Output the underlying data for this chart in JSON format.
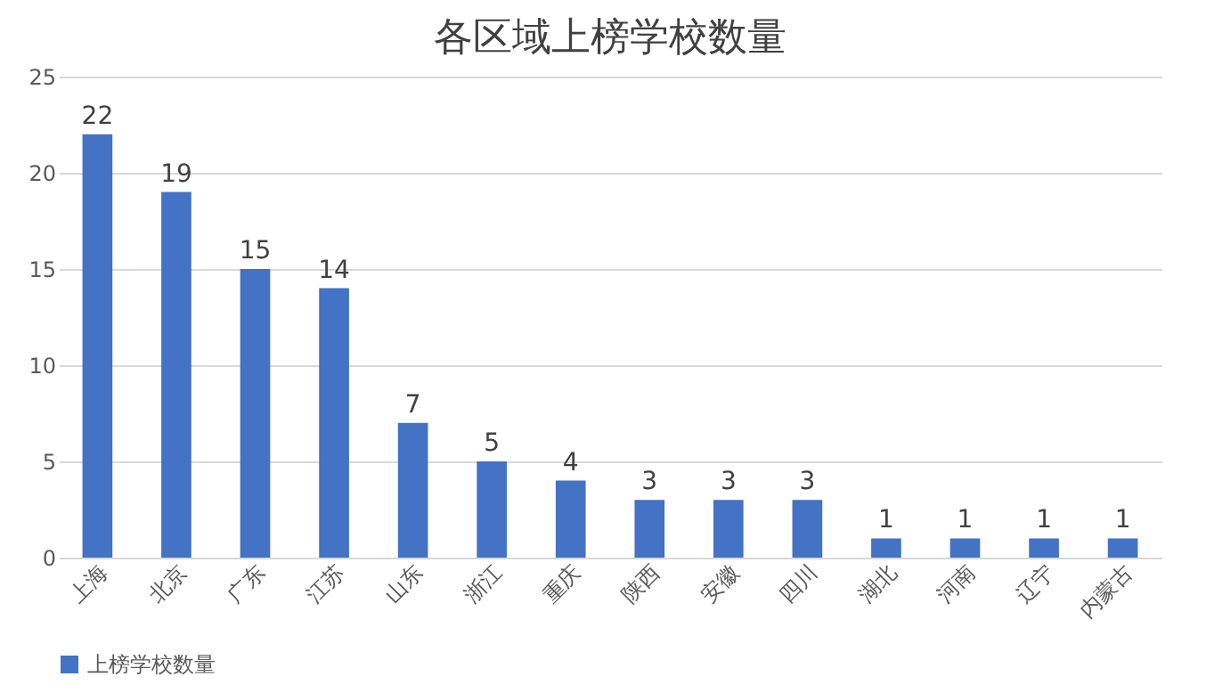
{
  "chart_data": {
    "type": "bar",
    "title": "各区域上榜学校数量",
    "categories": [
      "上海",
      "北京",
      "广东",
      "江苏",
      "山东",
      "浙江",
      "重庆",
      "陕西",
      "安徽",
      "四川",
      "湖北",
      "河南",
      "辽宁",
      "内蒙古"
    ],
    "series": [
      {
        "name": "上榜学校数量",
        "color": "#4472c4",
        "values": [
          22,
          19,
          15,
          14,
          7,
          5,
          4,
          3,
          3,
          3,
          1,
          1,
          1,
          1
        ]
      }
    ],
    "ylim": [
      0,
      25
    ],
    "yticks": [
      0,
      5,
      10,
      15,
      20,
      25
    ],
    "grid": "y",
    "legend": "bottom",
    "data_labels": true
  }
}
